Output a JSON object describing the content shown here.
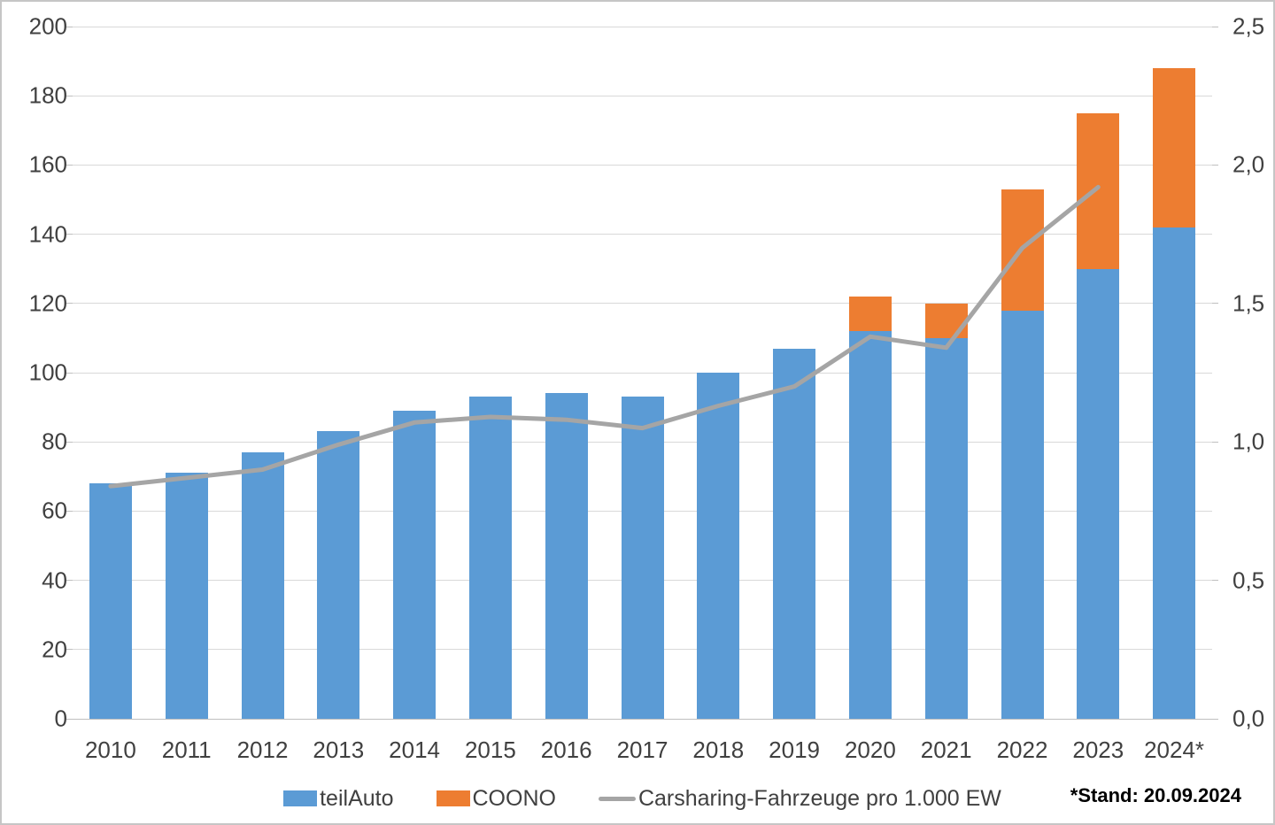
{
  "chart_data": {
    "type": "bar",
    "subtype": "stacked-bar-with-line-combo",
    "title": "",
    "categories": [
      "2010",
      "2011",
      "2012",
      "2013",
      "2014",
      "2015",
      "2016",
      "2017",
      "2018",
      "2019",
      "2020",
      "2021",
      "2022",
      "2023",
      "2024*"
    ],
    "series": [
      {
        "name": "teilAuto",
        "type": "bar",
        "axis": "left",
        "color": "#5B9BD5",
        "values": [
          68,
          71,
          77,
          83,
          89,
          93,
          94,
          93,
          100,
          107,
          112,
          110,
          118,
          130,
          142
        ]
      },
      {
        "name": "COONO",
        "type": "bar",
        "axis": "left",
        "color": "#ED7D31",
        "values": [
          0,
          0,
          0,
          0,
          0,
          0,
          0,
          0,
          0,
          0,
          10,
          10,
          35,
          45,
          46
        ]
      },
      {
        "name": "Carsharing-Fahrzeuge pro 1.000 EW",
        "type": "line",
        "axis": "right",
        "color": "#A5A5A5",
        "values": [
          0.84,
          0.87,
          0.9,
          0.99,
          1.07,
          1.09,
          1.08,
          1.05,
          1.13,
          1.2,
          1.38,
          1.34,
          1.7,
          1.92,
          null
        ]
      }
    ],
    "left_axis": {
      "min": 0,
      "max": 200,
      "step": 20,
      "tick_labels": [
        "0",
        "20",
        "40",
        "60",
        "80",
        "100",
        "120",
        "140",
        "160",
        "180",
        "200"
      ]
    },
    "right_axis": {
      "min": 0,
      "max": 2.5,
      "step": 0.5,
      "tick_labels": [
        "0,0",
        "0,5",
        "1,0",
        "1,5",
        "2,0",
        "2,5"
      ]
    },
    "grid": true,
    "legend_position": "bottom",
    "footnote": "*Stand: 20.09.2024"
  },
  "colors": {
    "teilauto_blue": "#5B9BD5",
    "coono_orange": "#ED7D31",
    "line_gray": "#A5A5A5",
    "gridline": "#D9D9D9",
    "axis_line": "#BFBFBF",
    "label_text": "#404040",
    "footnote_text": "#000000"
  }
}
